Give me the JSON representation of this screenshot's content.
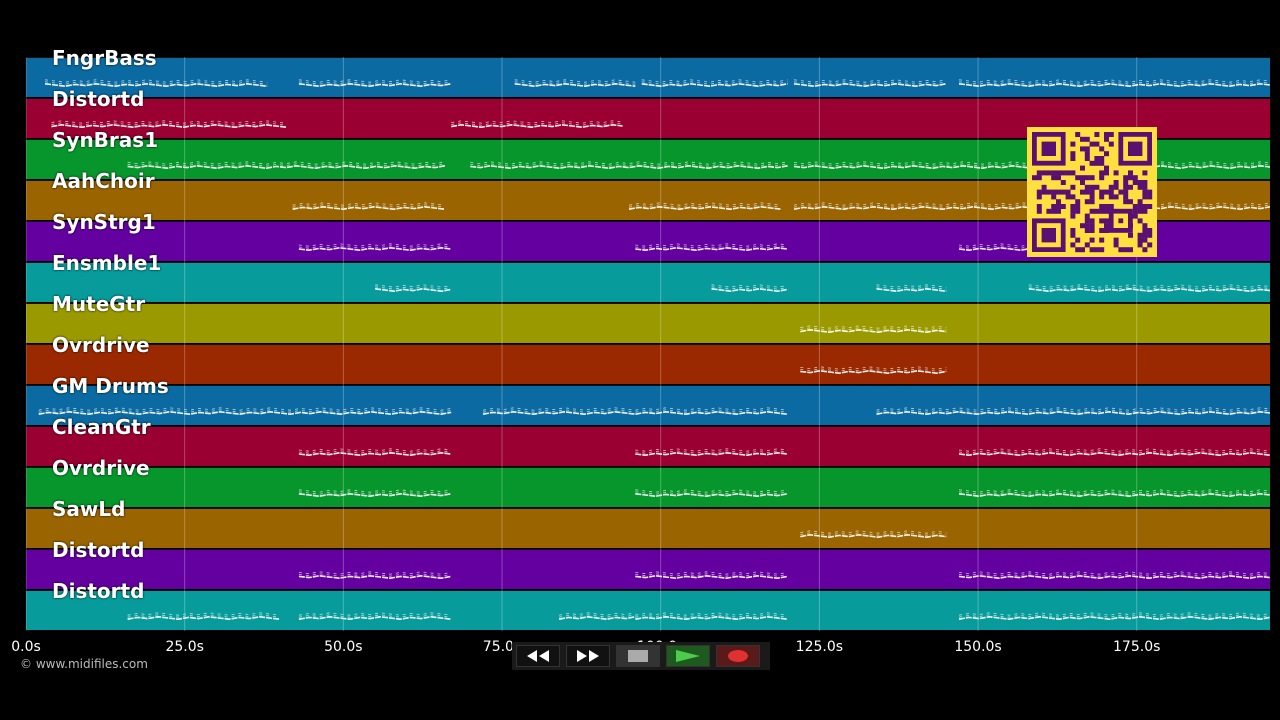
{
  "tracks": [
    {
      "label": "FngrBass",
      "color": "#0a6aa1"
    },
    {
      "label": "Distortd",
      "color": "#9a0032"
    },
    {
      "label": "SynBras1",
      "color": "#07962b"
    },
    {
      "label": "AahChoir",
      "color": "#9a6400"
    },
    {
      "label": "SynStrg1",
      "color": "#6400a0"
    },
    {
      "label": "Ensmble1",
      "color": "#079b9b"
    },
    {
      "label": "MuteGtr",
      "color": "#9a9a00"
    },
    {
      "label": "Ovrdrive",
      "color": "#9a2800"
    },
    {
      "label": "GM Drums",
      "color": "#0a6aa1"
    },
    {
      "label": "CleanGtr",
      "color": "#9a0032"
    },
    {
      "label": "Ovrdrive",
      "color": "#07962b"
    },
    {
      "label": "SawLd",
      "color": "#9a6400"
    },
    {
      "label": "Distortd",
      "color": "#6400a0"
    },
    {
      "label": "Distortd",
      "color": "#079b9b"
    }
  ],
  "time_axis": {
    "ticks": [
      "0.0s",
      "25.0s",
      "50.0s",
      "75.0s",
      "100.0s",
      "125.0s",
      "150.0s",
      "175.0s"
    ],
    "tick_values": [
      0,
      25,
      50,
      75,
      100,
      125,
      150,
      175
    ],
    "max_seconds": 196
  },
  "note_segments": [
    [
      [
        3,
        38
      ],
      [
        43,
        67
      ],
      [
        77,
        96
      ],
      [
        97,
        120
      ],
      [
        121,
        145
      ],
      [
        147,
        196
      ]
    ],
    [
      [
        4,
        41
      ],
      [
        67,
        94
      ]
    ],
    [
      [
        16,
        66
      ],
      [
        70,
        120
      ],
      [
        121,
        196
      ]
    ],
    [
      [
        42,
        66
      ],
      [
        95,
        119
      ],
      [
        121,
        196
      ]
    ],
    [
      [
        43,
        67
      ],
      [
        96,
        120
      ],
      [
        147,
        160
      ]
    ],
    [
      [
        55,
        67
      ],
      [
        108,
        120
      ],
      [
        134,
        145
      ],
      [
        158,
        196
      ]
    ],
    [
      [
        122,
        145
      ]
    ],
    [
      [
        122,
        145
      ]
    ],
    [
      [
        2,
        67
      ],
      [
        72,
        120
      ],
      [
        134,
        196
      ]
    ],
    [
      [
        43,
        67
      ],
      [
        96,
        120
      ],
      [
        147,
        196
      ]
    ],
    [
      [
        43,
        67
      ],
      [
        96,
        120
      ],
      [
        147,
        196
      ]
    ],
    [
      [
        122,
        145
      ]
    ],
    [
      [
        43,
        67
      ],
      [
        96,
        120
      ],
      [
        147,
        196
      ]
    ],
    [
      [
        16,
        40
      ],
      [
        43,
        67
      ],
      [
        84,
        96
      ],
      [
        96,
        120
      ],
      [
        147,
        196
      ]
    ]
  ],
  "copyright": "© www.midifiles.com",
  "transport": {
    "buttons": [
      "rewind-icon",
      "fast-forward-icon",
      "stop-icon",
      "play-icon",
      "record-icon"
    ]
  },
  "qr_code": {
    "color": "#ffe040",
    "dark": "#5a1070"
  }
}
